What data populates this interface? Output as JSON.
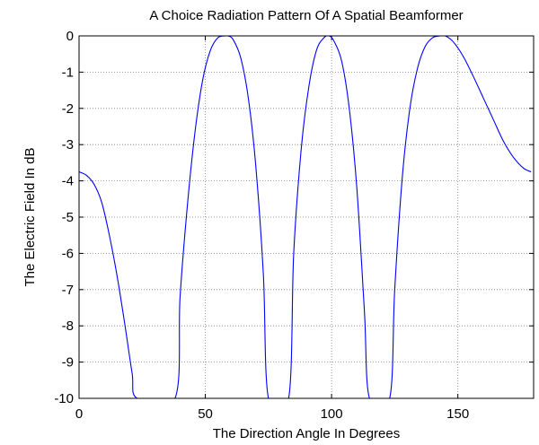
{
  "chart_data": {
    "type": "line",
    "title": "A Choice Radiation Pattern Of A Spatial Beamformer",
    "xlabel": "The Direction Angle In Degrees",
    "ylabel": "The Electric Field In dB",
    "xlim": [
      0,
      180
    ],
    "ylim": [
      -10,
      0
    ],
    "xticks": [
      0,
      50,
      100,
      150
    ],
    "yticks": [
      0,
      -1,
      -2,
      -3,
      -4,
      -5,
      -6,
      -7,
      -8,
      -9,
      -10
    ],
    "grid": true,
    "line_color": "#0000ff",
    "series": [
      {
        "x": [
          0,
          3,
          6,
          9,
          12,
          15,
          18,
          21,
          23,
          38,
          40,
          43,
          46,
          49,
          52,
          55,
          58,
          59,
          61,
          64,
          67,
          70,
          73,
          75,
          83,
          85,
          88,
          91,
          94,
          97,
          99,
          101,
          104,
          107,
          110,
          113,
          115,
          123,
          125,
          128,
          131,
          134,
          137,
          140,
          143,
          145,
          148,
          152,
          156,
          160,
          164,
          168,
          172,
          176,
          179
        ],
        "y": [
          -3.75,
          -3.85,
          -4.1,
          -4.6,
          -5.5,
          -6.6,
          -7.9,
          -9.3,
          -10,
          -10,
          -7.2,
          -4.6,
          -2.6,
          -1.2,
          -0.4,
          -0.05,
          0,
          0,
          -0.1,
          -0.6,
          -1.7,
          -3.6,
          -6.6,
          -10,
          -10,
          -6.0,
          -3.1,
          -1.4,
          -0.4,
          -0.05,
          0,
          -0.15,
          -0.7,
          -2.0,
          -4.2,
          -7.6,
          -10,
          -10,
          -7.0,
          -3.9,
          -2.0,
          -0.9,
          -0.3,
          -0.05,
          0,
          0,
          -0.15,
          -0.55,
          -1.1,
          -1.7,
          -2.3,
          -2.9,
          -3.35,
          -3.65,
          -3.75
        ]
      }
    ]
  }
}
